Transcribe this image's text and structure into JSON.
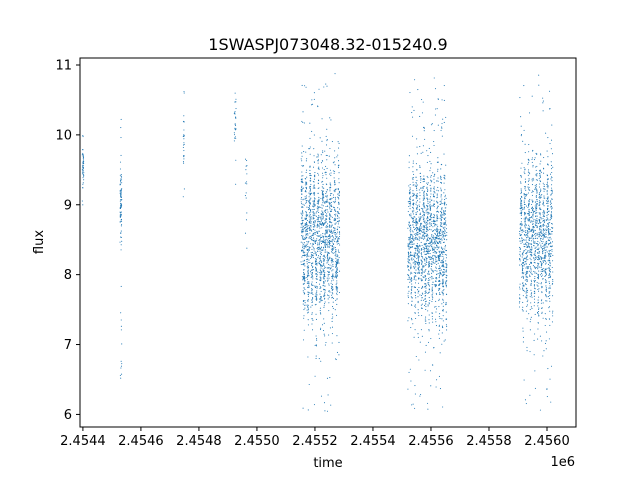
{
  "chart_data": {
    "type": "scatter",
    "title": "1SWASPJ073048.32-015240.9",
    "xlabel": "time",
    "ylabel": "flux",
    "x_offset_label": "1e6",
    "xlim": [
      2454390,
      2456100
    ],
    "ylim": [
      5.82,
      11.1
    ],
    "grid": false,
    "marker_color": "#1f77b4",
    "x_ticks": [
      2454400,
      2454600,
      2454800,
      2455000,
      2455200,
      2455400,
      2455600,
      2455800,
      2456000
    ],
    "x_tick_labels": [
      "2.4544",
      "2.4546",
      "2.4548",
      "2.4550",
      "2.4552",
      "2.4554",
      "2.4556",
      "2.4558",
      "2.4560"
    ],
    "y_ticks": [
      6,
      7,
      8,
      9,
      10,
      11
    ],
    "y_tick_labels": [
      "6",
      "7",
      "8",
      "9",
      "10",
      "11"
    ],
    "clusters": [
      {
        "t_start": 2454398,
        "t_end": 2454403,
        "flux_center": 9.55,
        "flux_spread": 0.18,
        "n": 40,
        "outlier_min": 9.2,
        "outlier_max": 10.05,
        "n_outliers": 6
      },
      {
        "t_start": 2454528,
        "t_end": 2454534,
        "flux_center": 9.05,
        "flux_spread": 0.22,
        "n": 70,
        "outlier_min": 6.5,
        "outlier_max": 10.85,
        "n_outliers": 28
      },
      {
        "t_start": 2454746,
        "t_end": 2454750,
        "flux_center": 10.0,
        "flux_spread": 0.25,
        "n": 20,
        "outlier_min": 9.0,
        "outlier_max": 10.55,
        "n_outliers": 6
      },
      {
        "t_start": 2454922,
        "t_end": 2454928,
        "flux_center": 10.1,
        "flux_spread": 0.3,
        "n": 22,
        "outlier_min": 8.8,
        "outlier_max": 10.65,
        "n_outliers": 6
      },
      {
        "t_start": 2454960,
        "t_end": 2454966,
        "flux_center": 9.2,
        "flux_spread": 0.35,
        "n": 12,
        "outlier_min": 8.1,
        "outlier_max": 9.9,
        "n_outliers": 4
      },
      {
        "t_start": 2455152,
        "t_end": 2455285,
        "flux_center": 8.5,
        "flux_spread": 0.42,
        "amplitude": 0.55,
        "period_days": 14,
        "n": 1500,
        "outlier_min": 6.0,
        "outlier_max": 10.9,
        "n_outliers": 130
      },
      {
        "t_start": 2455520,
        "t_end": 2455655,
        "flux_center": 8.45,
        "flux_spread": 0.4,
        "amplitude": 0.5,
        "period_days": 12,
        "n": 1500,
        "outlier_min": 6.05,
        "outlier_max": 10.85,
        "n_outliers": 140
      },
      {
        "t_start": 2455905,
        "t_end": 2456020,
        "flux_center": 8.5,
        "flux_spread": 0.38,
        "amplitude": 0.55,
        "period_days": 13,
        "n": 1200,
        "outlier_min": 6.0,
        "outlier_max": 10.95,
        "n_outliers": 90
      }
    ]
  }
}
